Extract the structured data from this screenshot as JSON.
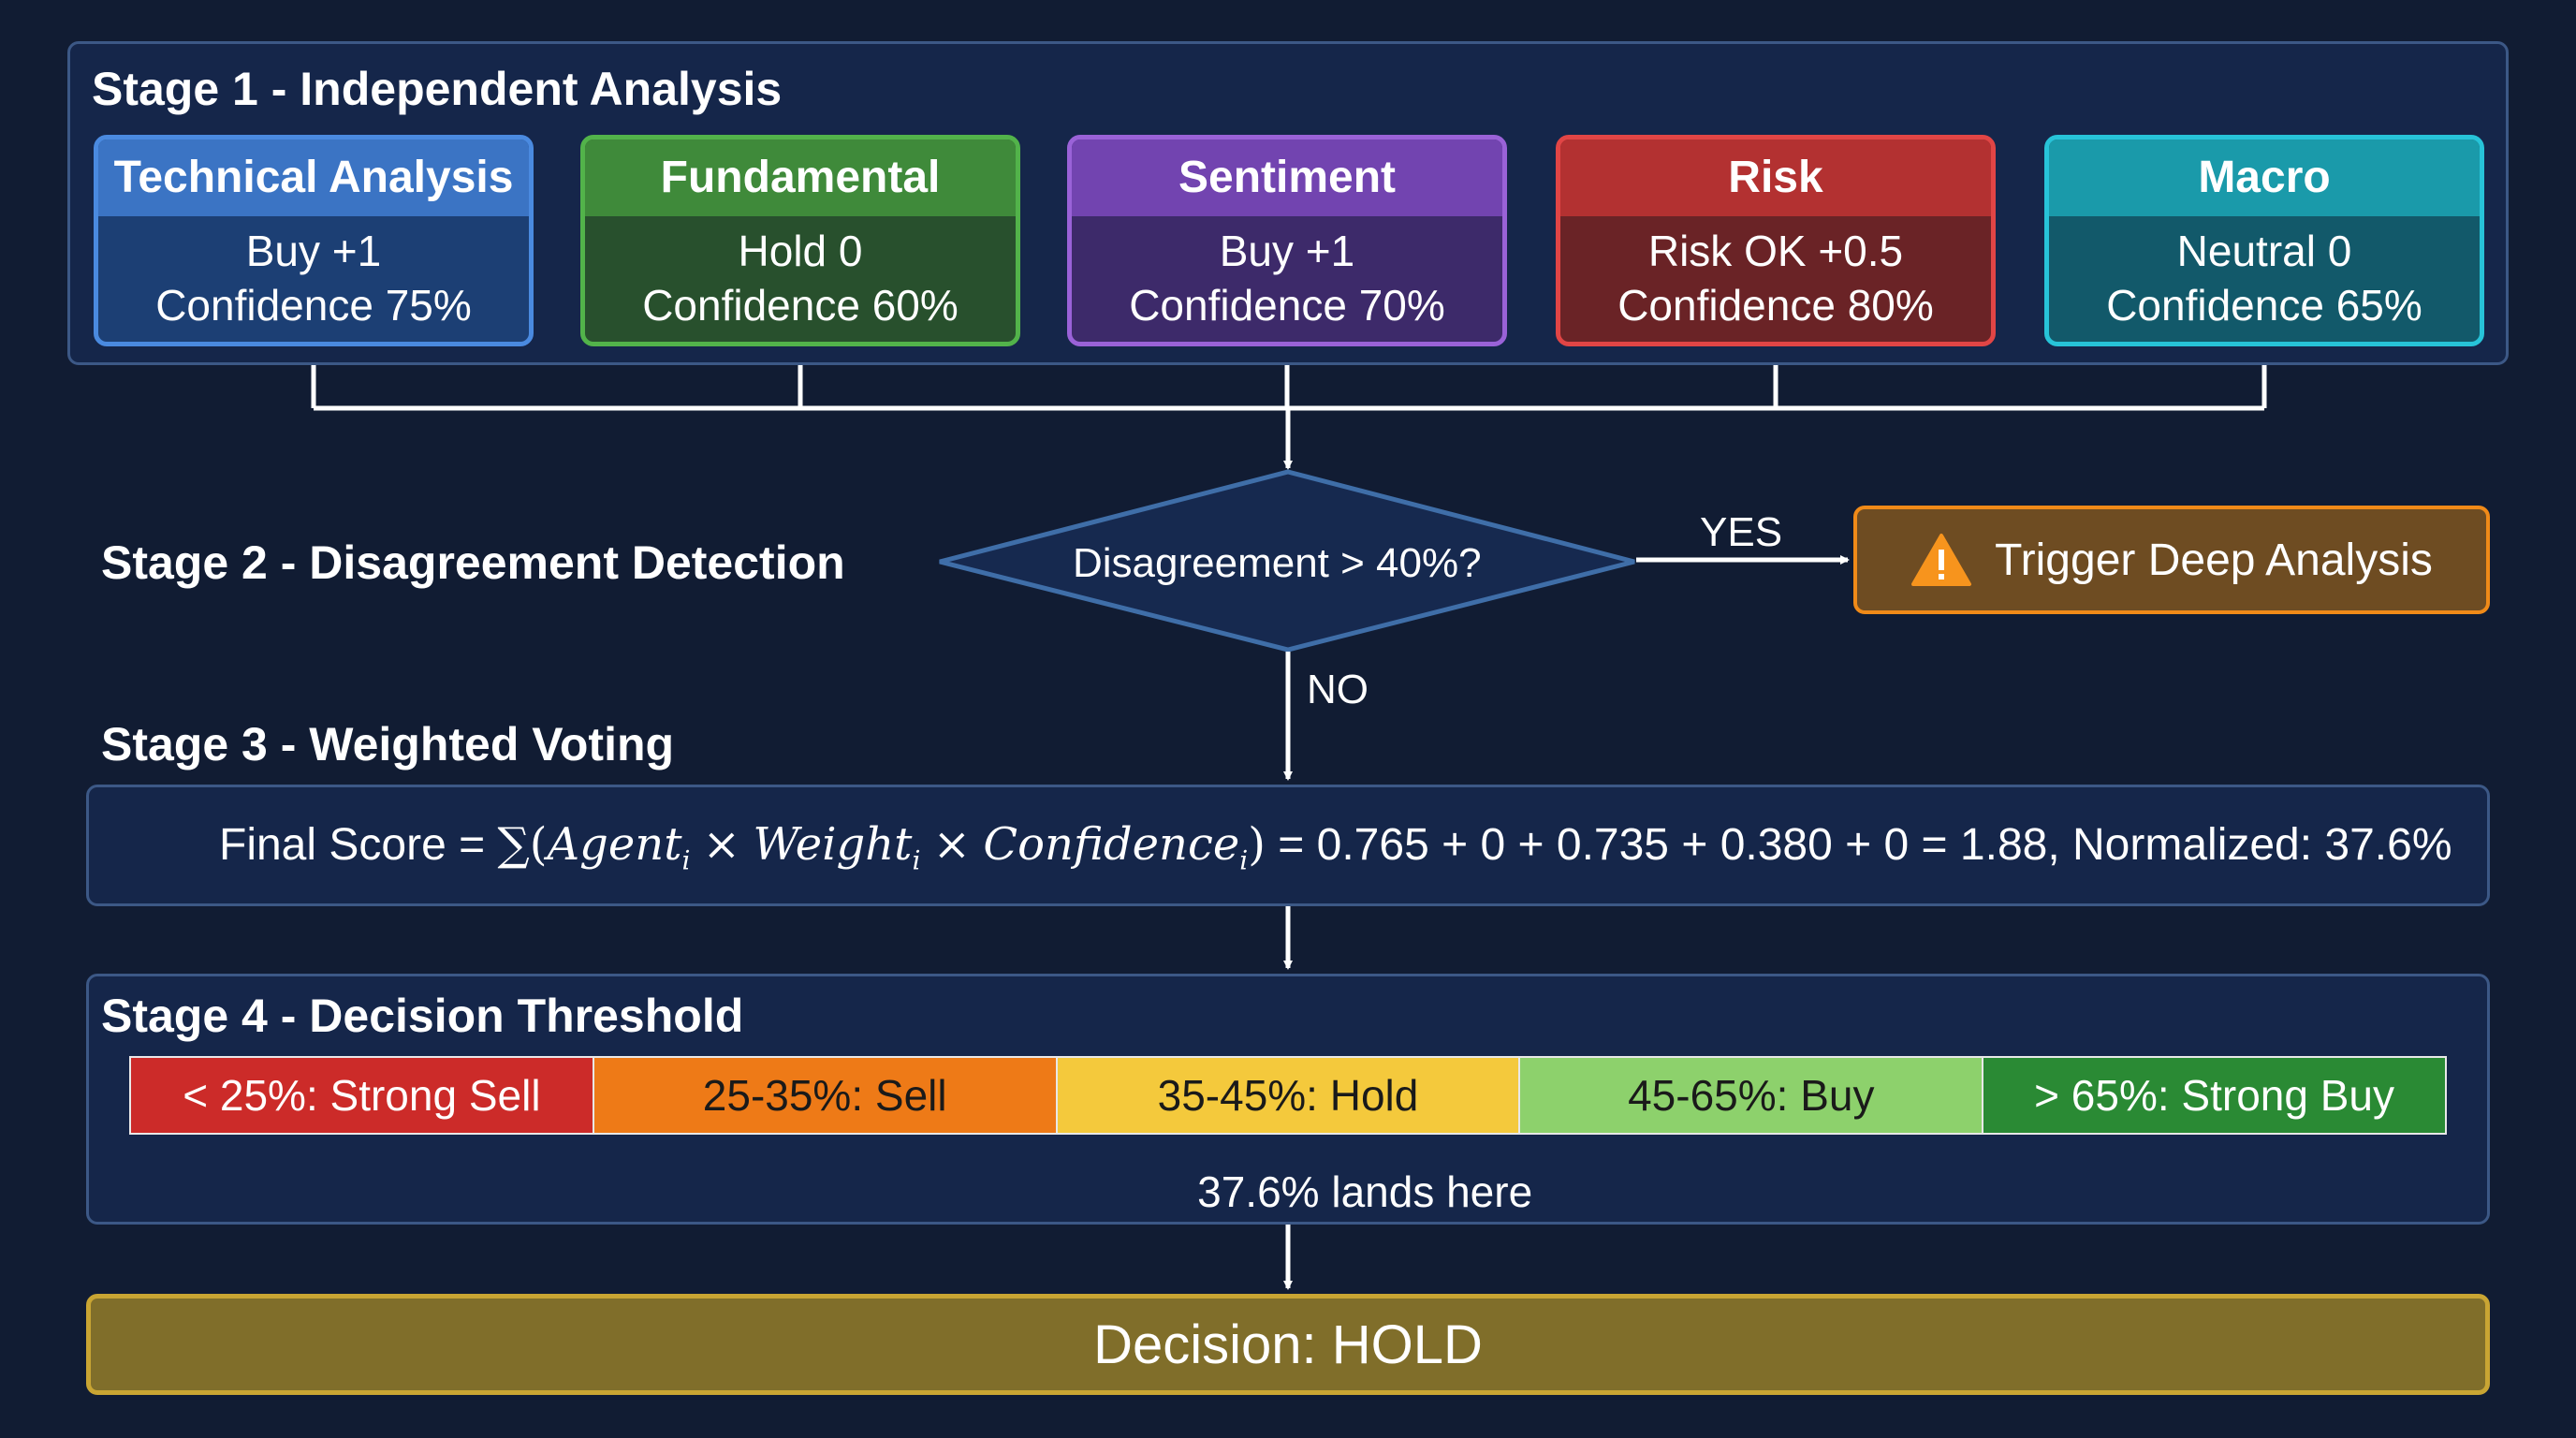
{
  "stage1": {
    "title": "Stage 1 - Independent Analysis",
    "agents": [
      {
        "name": "Technical Analysis",
        "signal": "Buy +1",
        "confidence": "Confidence 75%",
        "color": "#3b74c4",
        "border": "#4a8ae0",
        "body": "#1c3f74"
      },
      {
        "name": "Fundamental",
        "signal": "Hold 0",
        "confidence": "Confidence 60%",
        "color": "#3f8a3a",
        "border": "#52b34a",
        "body": "#28502d"
      },
      {
        "name": "Sentiment",
        "signal": "Buy +1",
        "confidence": "Confidence 70%",
        "color": "#7244b0",
        "border": "#9a62d8",
        "body": "#3d2a6a"
      },
      {
        "name": "Risk",
        "signal": "Risk OK +0.5",
        "confidence": "Confidence 80%",
        "color": "#b33131",
        "border": "#e14545",
        "body": "#6a2326"
      },
      {
        "name": "Macro",
        "signal": "Neutral 0",
        "confidence": "Confidence 65%",
        "color": "#1a9aaa",
        "border": "#27c3d8",
        "body": "#12596a"
      }
    ]
  },
  "stage2": {
    "title": "Stage 2 - Disagreement Detection",
    "decision": "Disagreement > 40%?",
    "yes_label": "YES",
    "no_label": "NO",
    "trigger": {
      "label": "Trigger Deep Analysis",
      "icon": "warning-icon",
      "color": "#f08a18"
    }
  },
  "stage3": {
    "title": "Stage 3 - Weighted Voting",
    "formula": {
      "prefix": "Final Score =",
      "sum_symbol": "∑",
      "term1": "Agent",
      "term2": "Weight",
      "term3": "Confidence",
      "subscript": "i",
      "times": "×",
      "open_paren": "(",
      "close_paren": ")",
      "suffix": "= 0.765 + 0 + 0.735 + 0.380 + 0 = 1.88, Normalized: 37.6%"
    }
  },
  "stage4": {
    "title": "Stage 4 - Decision Threshold",
    "segments": [
      {
        "label": "< 25%: Strong Sell",
        "color": "#cc2b29",
        "text_color": "#ffffff"
      },
      {
        "label": "25-35%: Sell",
        "color": "#ee7a17",
        "text_color": "#1a1a1a"
      },
      {
        "label": "35-45%: Hold",
        "color": "#f4c93c",
        "text_color": "#1a1a1a"
      },
      {
        "label": "45-65%: Buy",
        "color": "#8dd16c",
        "text_color": "#1a1a1a"
      },
      {
        "label": "> 65%: Strong Buy",
        "color": "#2a8a34",
        "text_color": "#ffffff"
      }
    ],
    "marker_label": "37.6% lands here",
    "marker_value_percent": 37.6
  },
  "decision": {
    "label": "Decision: HOLD"
  }
}
